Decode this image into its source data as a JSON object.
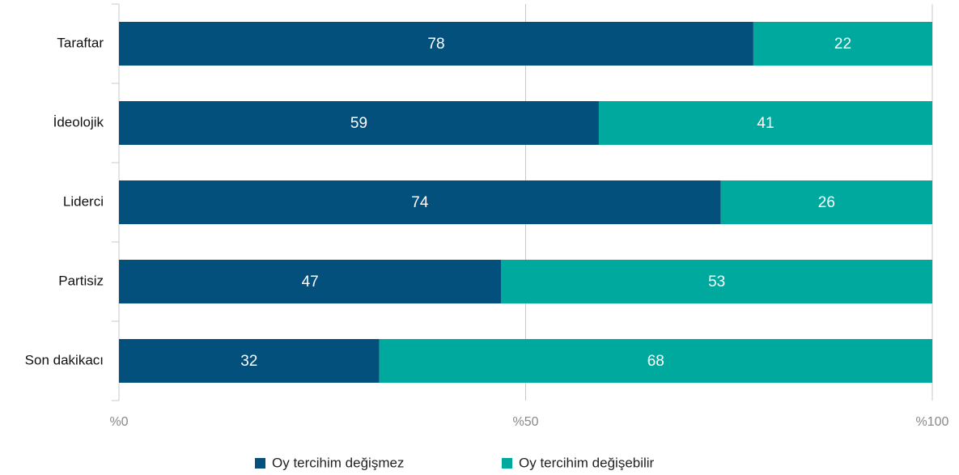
{
  "chart_data": {
    "type": "bar",
    "orientation": "horizontal",
    "stacked": true,
    "categories": [
      "Taraftar",
      "İdeolojik",
      "Liderci",
      "Partisiz",
      "Son dakikacı"
    ],
    "series": [
      {
        "name": "Oy tercihim değişmez",
        "color": "#04507d",
        "values": [
          78,
          59,
          74,
          47,
          32
        ]
      },
      {
        "name": "Oy tercihim değişebilir",
        "color": "#00a99d",
        "values": [
          22,
          41,
          26,
          53,
          68
        ]
      }
    ],
    "xlim": [
      0,
      100
    ],
    "xticks": [
      {
        "value": 0,
        "label": "%0"
      },
      {
        "value": 50,
        "label": "%50"
      },
      {
        "value": 100,
        "label": "%100"
      }
    ],
    "grid": true,
    "legend": "bottom"
  }
}
